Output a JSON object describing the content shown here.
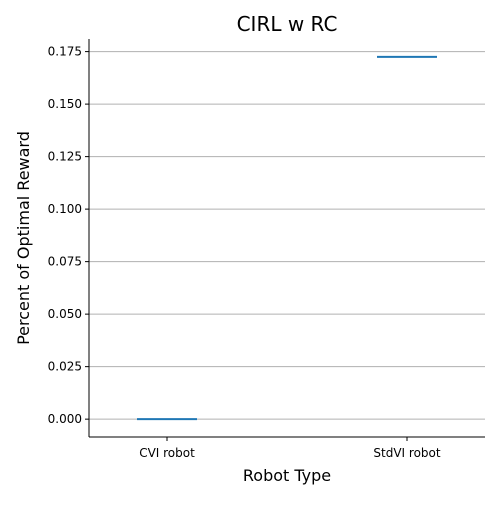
{
  "chart_data": {
    "type": "line",
    "title": "CIRL w RC",
    "xlabel": "Robot Type",
    "ylabel": "Percent of Optimal Reward",
    "categories": [
      "CVI robot",
      "StdVI robot"
    ],
    "series": [
      {
        "values": [
          0.0,
          0.1725
        ]
      }
    ],
    "ylim": [
      -0.0085,
      0.181
    ],
    "yticks": [
      "0.000",
      "0.025",
      "0.050",
      "0.075",
      "0.100",
      "0.125",
      "0.150",
      "0.175"
    ],
    "yticks_values": [
      0,
      0.025,
      0.05,
      0.075,
      0.1,
      0.125,
      0.15,
      0.175
    ],
    "grid": "y-major",
    "marker": "horizontal-dash",
    "colors": {
      "series": "#1f77b4",
      "grid": "#b0b0b0",
      "axis": "#000000"
    }
  }
}
